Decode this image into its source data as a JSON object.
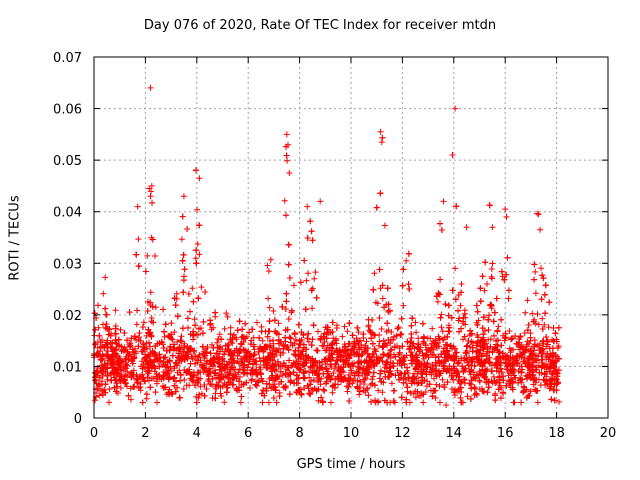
{
  "chart_data": {
    "type": "scatter",
    "title": "Day 076 of 2020, Rate Of TEC Index for receiver mtdn",
    "xlabel": "GPS time / hours",
    "ylabel": "ROTI / TECUs",
    "xlim": [
      0,
      20
    ],
    "ylim": [
      0,
      0.07
    ],
    "xticks": [
      0,
      2,
      4,
      6,
      8,
      10,
      12,
      14,
      16,
      18,
      20
    ],
    "yticks": [
      0,
      0.01,
      0.02,
      0.03,
      0.04,
      0.05,
      0.06,
      0.07
    ],
    "xtick_labels": [
      "0",
      "2",
      "4",
      "6",
      "8",
      "10",
      "12",
      "14",
      "16",
      "18",
      "20"
    ],
    "ytick_labels": [
      "0",
      "0.01",
      "0.02",
      "0.03",
      "0.04",
      "0.05",
      "0.06",
      "0.07"
    ],
    "grid": true,
    "marker": "+",
    "color": "#ff0000",
    "data_extent_x": [
      0,
      18.1
    ],
    "baseline_band": [
      0.005,
      0.015
    ],
    "notable_points": [
      {
        "x": 2.2,
        "y": 0.064
      },
      {
        "x": 14.05,
        "y": 0.06
      },
      {
        "x": 13.95,
        "y": 0.051
      },
      {
        "x": 11.15,
        "y": 0.0555
      },
      {
        "x": 11.2,
        "y": 0.0535
      },
      {
        "x": 7.5,
        "y": 0.055
      },
      {
        "x": 7.55,
        "y": 0.053
      },
      {
        "x": 7.6,
        "y": 0.0475
      },
      {
        "x": 4.1,
        "y": 0.0465
      },
      {
        "x": 2.15,
        "y": 0.0445
      },
      {
        "x": 2.2,
        "y": 0.043
      },
      {
        "x": 2.25,
        "y": 0.045
      },
      {
        "x": 16.0,
        "y": 0.0405
      },
      {
        "x": 16.05,
        "y": 0.039
      },
      {
        "x": 13.6,
        "y": 0.042
      },
      {
        "x": 17.3,
        "y": 0.0395
      },
      {
        "x": 8.8,
        "y": 0.042
      },
      {
        "x": 8.3,
        "y": 0.041
      },
      {
        "x": 3.5,
        "y": 0.043
      },
      {
        "x": 1.7,
        "y": 0.041
      },
      {
        "x": 15.5,
        "y": 0.037
      },
      {
        "x": 14.5,
        "y": 0.037
      },
      {
        "x": 13.7,
        "y": 0.0025
      }
    ],
    "activity_bursts": [
      {
        "center": 0.3,
        "width": 0.25,
        "peak": 0.034
      },
      {
        "center": 1.7,
        "width": 0.2,
        "peak": 0.041
      },
      {
        "center": 2.2,
        "width": 0.2,
        "peak": 0.045
      },
      {
        "center": 3.5,
        "width": 0.45,
        "peak": 0.038
      },
      {
        "center": 4.05,
        "width": 0.25,
        "peak": 0.046
      },
      {
        "center": 6.8,
        "width": 0.3,
        "peak": 0.035
      },
      {
        "center": 7.5,
        "width": 0.25,
        "peak": 0.055
      },
      {
        "center": 8.4,
        "width": 0.4,
        "peak": 0.041
      },
      {
        "center": 11.15,
        "width": 0.3,
        "peak": 0.055
      },
      {
        "center": 12.1,
        "width": 0.3,
        "peak": 0.035
      },
      {
        "center": 13.6,
        "width": 0.3,
        "peak": 0.042
      },
      {
        "center": 14.1,
        "width": 0.35,
        "peak": 0.038
      },
      {
        "center": 15.3,
        "width": 0.4,
        "peak": 0.037
      },
      {
        "center": 16.0,
        "width": 0.2,
        "peak": 0.04
      },
      {
        "center": 17.3,
        "width": 0.4,
        "peak": 0.037
      }
    ]
  }
}
